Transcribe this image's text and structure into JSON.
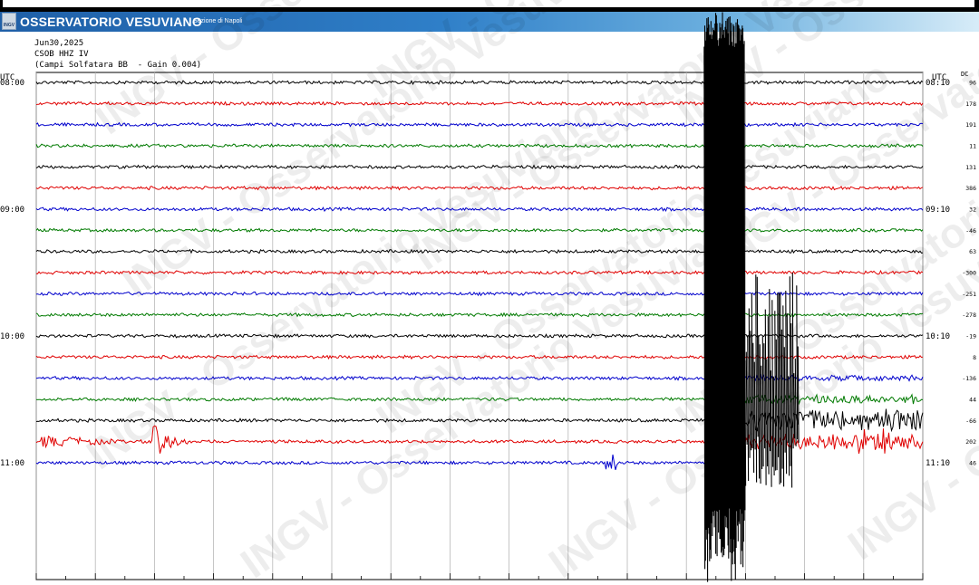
{
  "banner": {
    "logo_text": "INGV",
    "title": "OSSERVATORIO VESUVIANO",
    "subtitle": "Sezione di Napoli"
  },
  "header": {
    "date": "Jun30,2025",
    "station": "CSOB HHZ IV",
    "site": "(Campi Solfatara BB  - Gain 0.004)"
  },
  "chart_data": {
    "type": "line",
    "title": "",
    "left_axis_label": "UTC",
    "right_axis_label": "UTC",
    "dc_label": "DC",
    "left_time_labels": [
      "08:00",
      "09:00",
      "10:00",
      "11:00"
    ],
    "right_time_labels": [
      "08:10",
      "09:10",
      "10:10",
      "11:10"
    ],
    "trace_colors": [
      "#000000",
      "#e00000",
      "#0000cc",
      "#007a00"
    ],
    "dc_values": [
      "96",
      "178",
      "191",
      "11",
      "131",
      "386",
      "32",
      "-46",
      "63",
      "-300",
      "-251",
      "-278",
      "-19",
      "8",
      "-136",
      "44",
      "-66",
      "202",
      "46"
    ],
    "x_range_minutes": [
      0,
      15
    ],
    "lines_per_hour": 6,
    "events": [
      {
        "trace": 17,
        "minute": 2.0,
        "amplitude": "local event"
      },
      {
        "trace": 18,
        "minute": 9.7,
        "amplitude": "small"
      },
      {
        "trace": 0,
        "minute": 11.3,
        "amplitude": "clipped (large event)"
      }
    ],
    "watermark": "INGV - Osservatorio Vesuviano",
    "grid": true
  }
}
